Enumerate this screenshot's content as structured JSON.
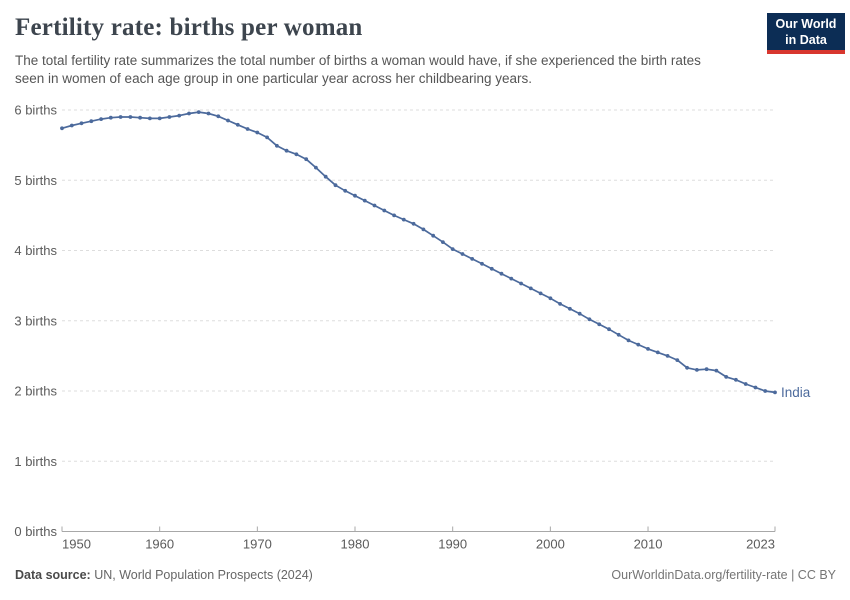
{
  "header": {
    "title": "Fertility rate: births per woman",
    "subtitle": "The total fertility rate summarizes the total number of births a woman would have, if she experienced the birth rates seen in women of each age group in one particular year across her childbearing years.",
    "logo": {
      "line1": "Our World",
      "line2": "in Data"
    }
  },
  "colors": {
    "logo_bg": "#0c2d55",
    "logo_accent": "#d8362e",
    "series": "#4C6A9C",
    "gridline": "#dddddd",
    "axis": "#a8a8a8",
    "tick_text": "#5b5b5b",
    "title_text": "#3d454e",
    "subtitle_text": "#555555"
  },
  "chart_data": {
    "type": "line",
    "title": "Fertility rate: births per woman",
    "xlabel": "",
    "ylabel": "births",
    "xlim": [
      1950,
      2023
    ],
    "ylim": [
      0,
      6
    ],
    "grid": "horizontal-dashed",
    "legend_position": "end-of-line-label",
    "x_ticks": [
      1950,
      1960,
      1970,
      1980,
      1990,
      2000,
      2010,
      2023
    ],
    "y_ticks": [
      0,
      1,
      2,
      3,
      4,
      5,
      6
    ],
    "y_tick_suffix": " births",
    "x": [
      1950,
      1951,
      1952,
      1953,
      1954,
      1955,
      1956,
      1957,
      1958,
      1959,
      1960,
      1961,
      1962,
      1963,
      1964,
      1965,
      1966,
      1967,
      1968,
      1969,
      1970,
      1971,
      1972,
      1973,
      1974,
      1975,
      1976,
      1977,
      1978,
      1979,
      1980,
      1981,
      1982,
      1983,
      1984,
      1985,
      1986,
      1987,
      1988,
      1989,
      1990,
      1991,
      1992,
      1993,
      1994,
      1995,
      1996,
      1997,
      1998,
      1999,
      2000,
      2001,
      2002,
      2003,
      2004,
      2005,
      2006,
      2007,
      2008,
      2009,
      2010,
      2011,
      2012,
      2013,
      2014,
      2015,
      2016,
      2017,
      2018,
      2019,
      2020,
      2021,
      2022,
      2023
    ],
    "series": [
      {
        "name": "India",
        "end_label": "India",
        "color": "#4C6A9C",
        "values": [
          5.74,
          5.78,
          5.81,
          5.84,
          5.87,
          5.89,
          5.9,
          5.9,
          5.89,
          5.88,
          5.88,
          5.9,
          5.92,
          5.95,
          5.97,
          5.95,
          5.91,
          5.85,
          5.79,
          5.73,
          5.68,
          5.61,
          5.49,
          5.42,
          5.37,
          5.3,
          5.18,
          5.05,
          4.93,
          4.85,
          4.78,
          4.71,
          4.64,
          4.57,
          4.5,
          4.44,
          4.38,
          4.3,
          4.21,
          4.12,
          4.02,
          3.95,
          3.88,
          3.81,
          3.74,
          3.67,
          3.6,
          3.53,
          3.46,
          3.39,
          3.32,
          3.24,
          3.17,
          3.1,
          3.02,
          2.95,
          2.88,
          2.8,
          2.72,
          2.66,
          2.6,
          2.55,
          2.5,
          2.44,
          2.33,
          2.3,
          2.31,
          2.29,
          2.2,
          2.16,
          2.1,
          2.05,
          2.0,
          1.98
        ]
      }
    ]
  },
  "footer": {
    "source_label": "Data source:",
    "source_text": " UN, World Population Prospects (2024)",
    "credit": "OurWorldinData.org/fertility-rate | CC BY"
  }
}
